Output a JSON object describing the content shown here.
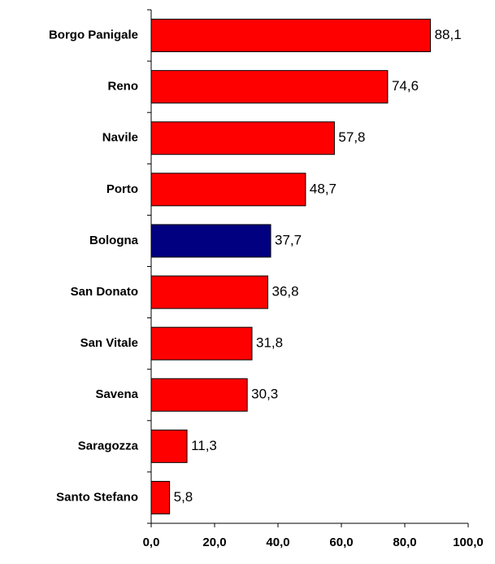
{
  "chart_data": {
    "type": "hbar",
    "categories": [
      "Borgo Panigale",
      "Reno",
      "Navile",
      "Porto",
      "Bologna",
      "San Donato",
      "San Vitale",
      "Savena",
      "Saragozza",
      "Santo Stefano"
    ],
    "values": [
      88.1,
      74.6,
      57.8,
      48.7,
      37.7,
      36.8,
      31.8,
      30.3,
      11.3,
      5.8
    ],
    "value_labels": [
      "88,1",
      "74,6",
      "57,8",
      "48,7",
      "37,7",
      "36,8",
      "31,8",
      "30,3",
      "11,3",
      "5,8"
    ],
    "colors": [
      "#ff0000",
      "#ff0000",
      "#ff0000",
      "#ff0000",
      "#000080",
      "#ff0000",
      "#ff0000",
      "#ff0000",
      "#ff0000",
      "#ff0000"
    ],
    "xlim": [
      0,
      100
    ],
    "xticks": [
      {
        "value": 0,
        "label": "0,0"
      },
      {
        "value": 20,
        "label": "20,0"
      },
      {
        "value": 40,
        "label": "40,0"
      },
      {
        "value": 60,
        "label": "60,0"
      },
      {
        "value": 80,
        "label": "80,0"
      },
      {
        "value": 100,
        "label": "100,0"
      }
    ]
  }
}
